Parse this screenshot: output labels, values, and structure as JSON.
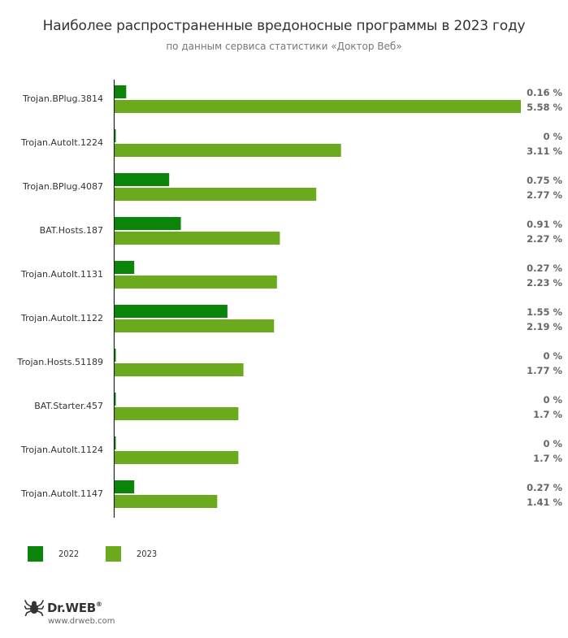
{
  "chart_data": {
    "type": "bar",
    "orientation": "horizontal",
    "title": "Наиболее распространенные вредоносные программы в 2023 году",
    "subtitle": "по данным сервиса статистики «Доктор Веб»",
    "categories": [
      "Trojan.BPlug.3814",
      "Trojan.AutoIt.1224",
      "Trojan.BPlug.4087",
      "BAT.Hosts.187",
      "Trojan.AutoIt.1131",
      "Trojan.AutoIt.1122",
      "Trojan.Hosts.51189",
      "BAT.Starter.457",
      "Trojan.AutoIt.1124",
      "Trojan.AutoIt.1147"
    ],
    "series": [
      {
        "name": "2022",
        "color": "#0a850a",
        "values": [
          0.16,
          0,
          0.75,
          0.91,
          0.27,
          1.55,
          0,
          0,
          0,
          0.27
        ],
        "labels": [
          "0.16 %",
          "0 %",
          "0.75 %",
          "0.91 %",
          "0.27 %",
          "1.55 %",
          "0 %",
          "0 %",
          "0 %",
          "0.27 %"
        ]
      },
      {
        "name": "2023",
        "color": "#6aaa1c",
        "values": [
          5.58,
          3.11,
          2.77,
          2.27,
          2.23,
          2.19,
          1.77,
          1.7,
          1.7,
          1.41
        ],
        "labels": [
          "5.58 %",
          "3.11 %",
          "2.77 %",
          "2.27 %",
          "2.23 %",
          "2.19 %",
          "1.77 %",
          "1.7 %",
          "1.7 %",
          "1.41 %"
        ]
      }
    ],
    "xlim": [
      0,
      5.58
    ],
    "grid": false,
    "legend_position": "bottom-left"
  },
  "logo": {
    "name": "Dr.WEB",
    "url": "www.drweb.com"
  }
}
